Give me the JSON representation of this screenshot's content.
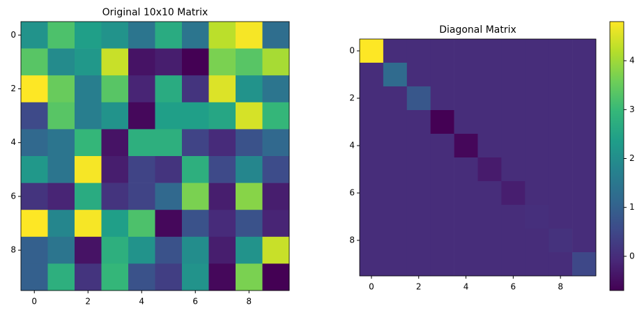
{
  "chart_data": [
    {
      "type": "heatmap",
      "title": "Original 10x10 Matrix",
      "colormap": "viridis",
      "xlim": [
        -0.5,
        9.5
      ],
      "ylim": [
        9.5,
        -0.5
      ],
      "xticks": [
        0,
        2,
        4,
        6,
        8
      ],
      "yticks": [
        0,
        2,
        4,
        6,
        8
      ],
      "z": [
        [
          0.5,
          0.7,
          0.55,
          0.5,
          0.38,
          0.6,
          0.38,
          0.88,
          0.97,
          0.35
        ],
        [
          0.72,
          0.47,
          0.52,
          0.9,
          0.05,
          0.08,
          0.0,
          0.78,
          0.72,
          0.85
        ],
        [
          0.98,
          0.75,
          0.42,
          0.72,
          0.1,
          0.6,
          0.15,
          0.93,
          0.5,
          0.38
        ],
        [
          0.22,
          0.72,
          0.42,
          0.5,
          0.02,
          0.55,
          0.55,
          0.58,
          0.92,
          0.65
        ],
        [
          0.33,
          0.38,
          0.65,
          0.05,
          0.62,
          0.62,
          0.2,
          0.12,
          0.25,
          0.33
        ],
        [
          0.52,
          0.38,
          0.97,
          0.08,
          0.2,
          0.15,
          0.62,
          0.22,
          0.45,
          0.23
        ],
        [
          0.15,
          0.1,
          0.6,
          0.15,
          0.2,
          0.33,
          0.78,
          0.08,
          0.8,
          0.08
        ],
        [
          0.98,
          0.45,
          0.97,
          0.55,
          0.7,
          0.02,
          0.25,
          0.12,
          0.25,
          0.1
        ],
        [
          0.3,
          0.38,
          0.05,
          0.62,
          0.5,
          0.25,
          0.48,
          0.08,
          0.5,
          0.9
        ],
        [
          0.3,
          0.62,
          0.15,
          0.65,
          0.25,
          0.18,
          0.5,
          0.02,
          0.78,
          0.0
        ]
      ]
    },
    {
      "type": "heatmap",
      "title": "Diagonal Matrix",
      "colormap": "viridis",
      "xlim": [
        -0.5,
        9.5
      ],
      "ylim": [
        9.5,
        -0.5
      ],
      "xticks": [
        0,
        2,
        4,
        6,
        8
      ],
      "yticks": [
        0,
        2,
        4,
        6,
        8
      ],
      "z": [
        [
          4.8,
          0,
          0,
          0,
          0,
          0,
          0,
          0,
          0,
          0
        ],
        [
          0,
          1.2,
          0,
          0,
          0,
          0,
          0,
          0,
          0,
          0
        ],
        [
          0,
          0,
          0.8,
          0,
          0,
          0,
          0,
          0,
          0,
          0
        ],
        [
          0,
          0,
          0,
          -0.7,
          0,
          0,
          0,
          0,
          0,
          0
        ],
        [
          0,
          0,
          0,
          0,
          -0.6,
          0,
          0,
          0,
          0,
          0
        ],
        [
          0,
          0,
          0,
          0,
          0,
          -0.3,
          0,
          0,
          0,
          0
        ],
        [
          0,
          0,
          0,
          0,
          0,
          0,
          -0.25,
          0,
          0,
          0
        ],
        [
          0,
          0,
          0,
          0,
          0,
          0,
          0,
          0.05,
          0,
          0
        ],
        [
          0,
          0,
          0,
          0,
          0,
          0,
          0,
          0,
          0.1,
          0
        ],
        [
          0,
          0,
          0,
          0,
          0,
          0,
          0,
          0,
          0,
          0.5
        ]
      ],
      "colorbar": {
        "lim": [
          -0.7,
          4.8
        ],
        "ticks": [
          0,
          1,
          2,
          3,
          4
        ]
      }
    }
  ]
}
